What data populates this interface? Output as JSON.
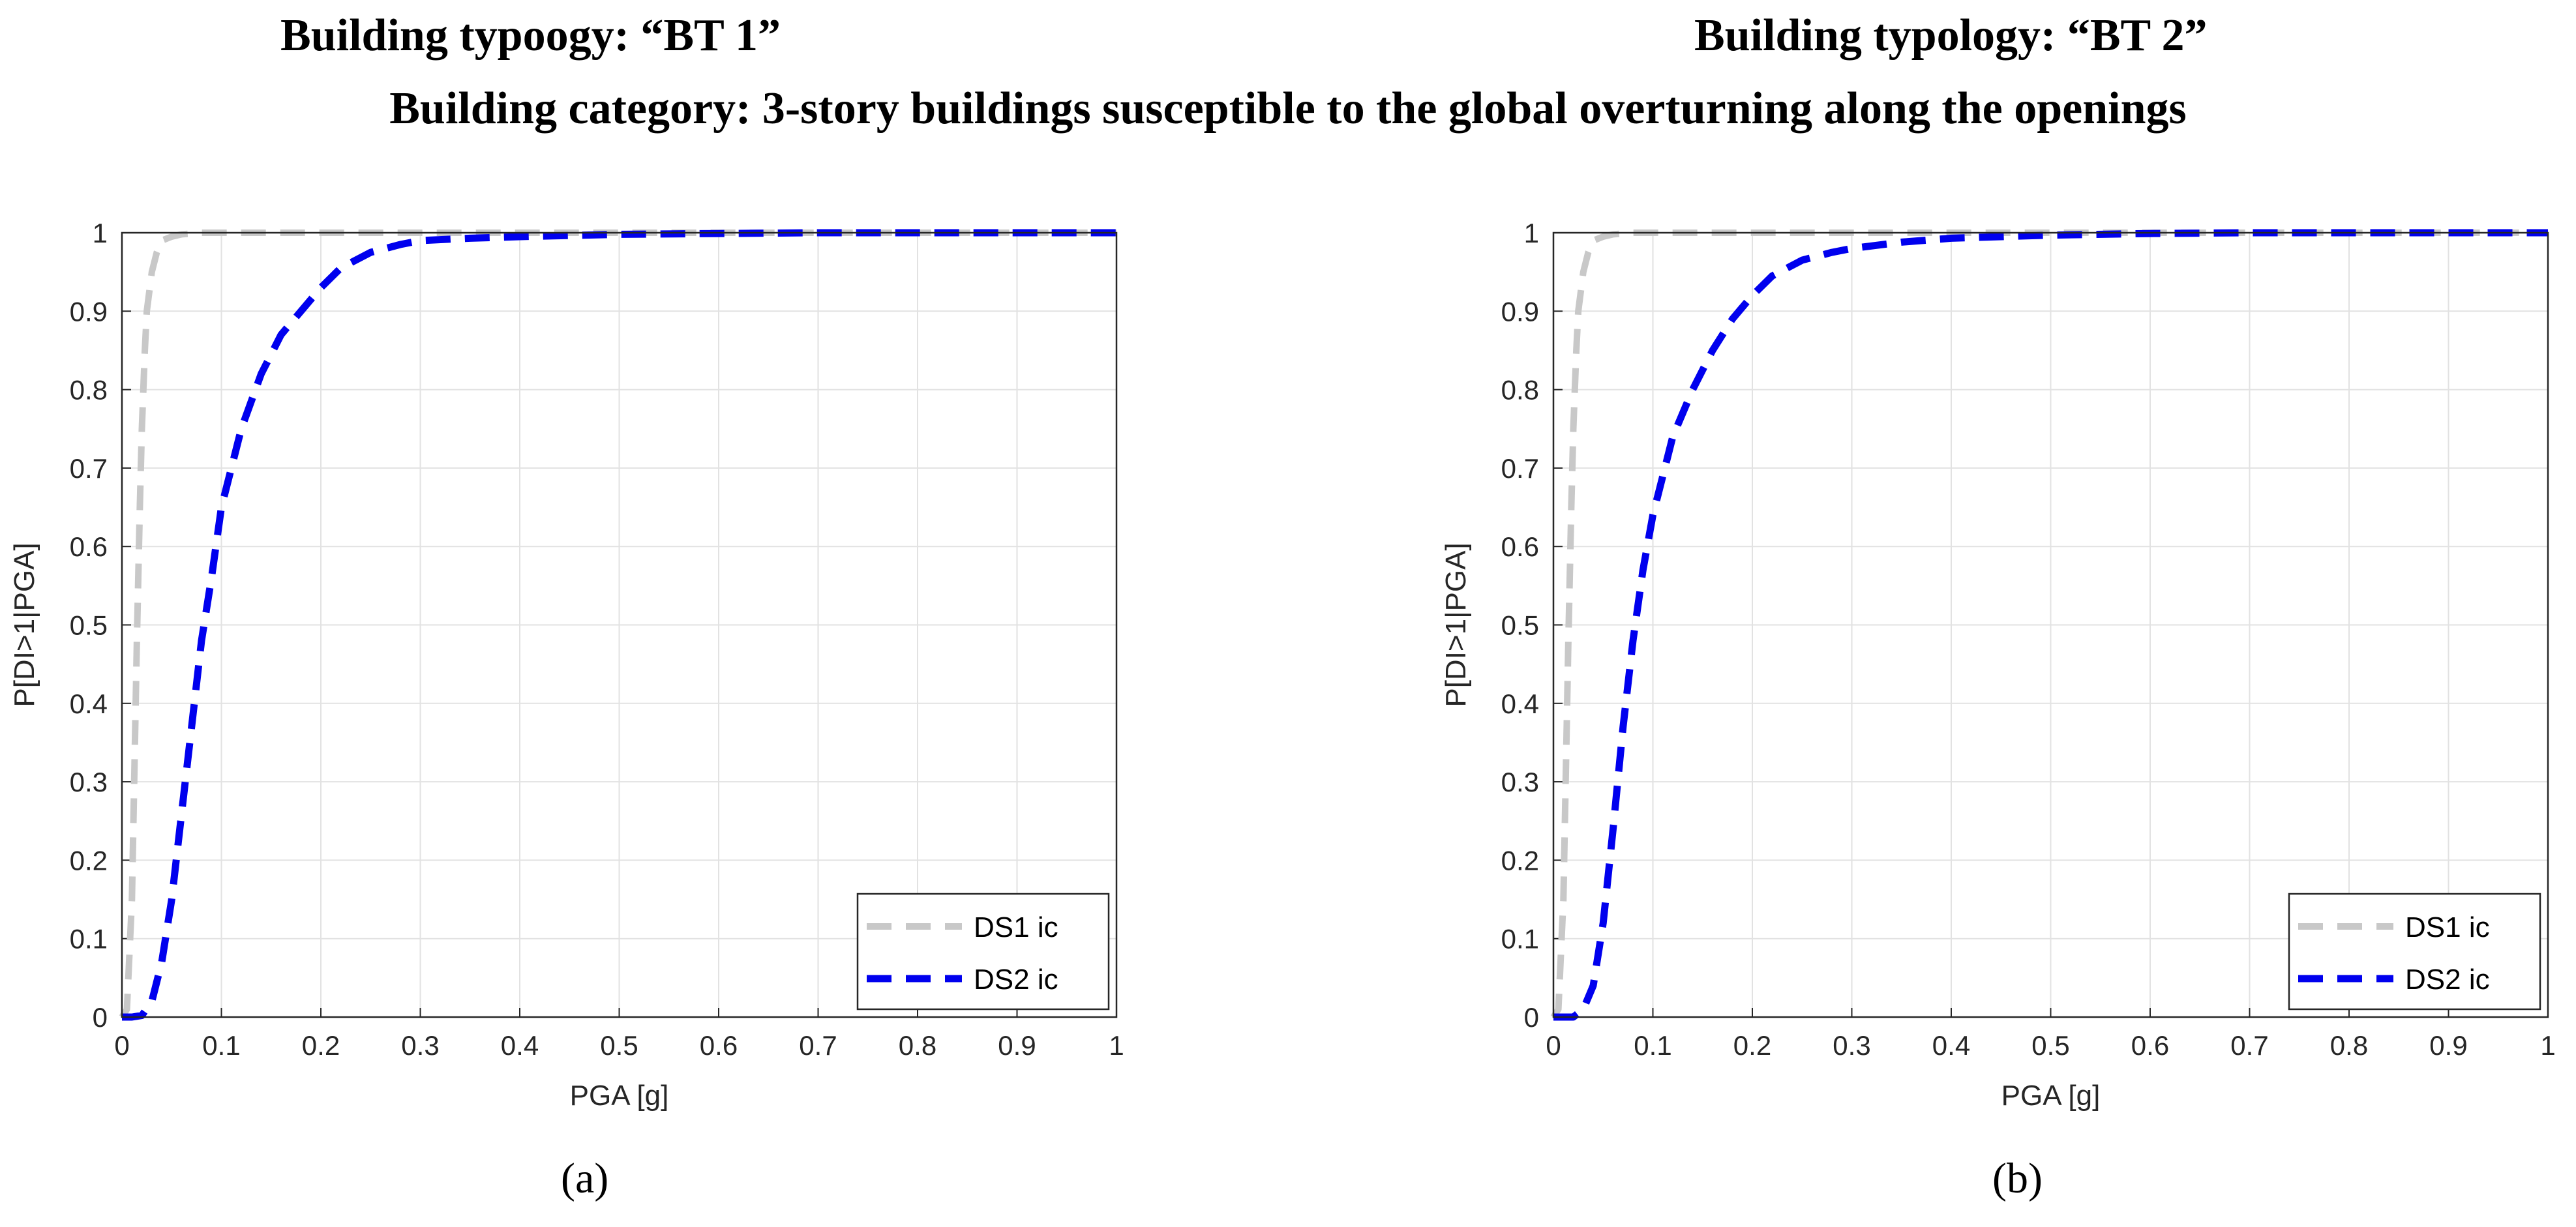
{
  "headings": {
    "left": "Building typoogy: “BT 1”",
    "right": "Building typology: “BT 2”",
    "category": "Building category: 3-story buildings susceptible to the global overturning along the openings"
  },
  "colors": {
    "ds1": "#c8c8c8",
    "ds2": "#0000ee",
    "grid": "#e2e2e2",
    "axis": "#262626"
  },
  "chart_data": [
    {
      "type": "line",
      "panel_label": "(a)",
      "xlabel": "PGA [g]",
      "ylabel": "P[DI>1|PGA]",
      "xlim": [
        0,
        1
      ],
      "ylim": [
        0,
        1
      ],
      "xticks": [
        "0",
        "0.1",
        "0.2",
        "0.3",
        "0.4",
        "0.5",
        "0.6",
        "0.7",
        "0.8",
        "0.9",
        "1"
      ],
      "yticks": [
        "0",
        "0.1",
        "0.2",
        "0.3",
        "0.4",
        "0.5",
        "0.6",
        "0.7",
        "0.8",
        "0.9",
        "1"
      ],
      "grid": true,
      "legend_position": "bottom-right",
      "series": [
        {
          "name": "DS1 ic",
          "style": "dashed",
          "color": "#c8c8c8",
          "x": [
            0,
            0.005,
            0.01,
            0.012,
            0.015,
            0.018,
            0.02,
            0.023,
            0.025,
            0.03,
            0.035,
            0.04,
            0.05,
            0.06,
            0.08,
            1.0
          ],
          "y": [
            0,
            0.01,
            0.15,
            0.28,
            0.48,
            0.65,
            0.75,
            0.85,
            0.9,
            0.95,
            0.975,
            0.99,
            0.995,
            0.998,
            1.0,
            1.0
          ]
        },
        {
          "name": "DS2 ic",
          "style": "dashed",
          "color": "#0000ee",
          "x": [
            0,
            0.01,
            0.02,
            0.03,
            0.04,
            0.05,
            0.06,
            0.07,
            0.08,
            0.09,
            0.1,
            0.11,
            0.12,
            0.14,
            0.16,
            0.18,
            0.2,
            0.22,
            0.25,
            0.28,
            0.3,
            0.35,
            0.4,
            0.5,
            0.6,
            0.7,
            0.8,
            0.9,
            1.0
          ],
          "y": [
            0,
            0.0,
            0.002,
            0.02,
            0.07,
            0.15,
            0.26,
            0.37,
            0.48,
            0.56,
            0.65,
            0.7,
            0.75,
            0.82,
            0.87,
            0.9,
            0.93,
            0.955,
            0.975,
            0.985,
            0.99,
            0.993,
            0.995,
            0.998,
            0.999,
            1.0,
            1.0,
            1.0,
            1.0
          ]
        }
      ]
    },
    {
      "type": "line",
      "panel_label": "(b)",
      "xlabel": "PGA [g]",
      "ylabel": "P[DI>1|PGA]",
      "xlim": [
        0,
        1
      ],
      "ylim": [
        0,
        1
      ],
      "xticks": [
        "0",
        "0.1",
        "0.2",
        "0.3",
        "0.4",
        "0.5",
        "0.6",
        "0.7",
        "0.8",
        "0.9",
        "1"
      ],
      "yticks": [
        "0",
        "0.1",
        "0.2",
        "0.3",
        "0.4",
        "0.5",
        "0.6",
        "0.7",
        "0.8",
        "0.9",
        "1"
      ],
      "grid": true,
      "legend_position": "bottom-right",
      "series": [
        {
          "name": "DS1 ic",
          "style": "dashed",
          "color": "#c8c8c8",
          "x": [
            0,
            0.005,
            0.01,
            0.012,
            0.015,
            0.018,
            0.02,
            0.023,
            0.025,
            0.03,
            0.035,
            0.04,
            0.05,
            0.06,
            0.08,
            1.0
          ],
          "y": [
            0,
            0.01,
            0.15,
            0.28,
            0.48,
            0.65,
            0.75,
            0.85,
            0.9,
            0.95,
            0.975,
            0.99,
            0.995,
            0.998,
            1.0,
            1.0
          ]
        },
        {
          "name": "DS2 ic",
          "style": "dashed",
          "color": "#0000ee",
          "x": [
            0,
            0.01,
            0.02,
            0.03,
            0.04,
            0.05,
            0.06,
            0.07,
            0.08,
            0.09,
            0.1,
            0.11,
            0.12,
            0.14,
            0.16,
            0.18,
            0.2,
            0.22,
            0.25,
            0.28,
            0.3,
            0.35,
            0.4,
            0.5,
            0.6,
            0.7,
            0.8,
            0.9,
            1.0
          ],
          "y": [
            0,
            0.0,
            0.0,
            0.01,
            0.04,
            0.12,
            0.24,
            0.37,
            0.48,
            0.57,
            0.64,
            0.69,
            0.74,
            0.8,
            0.85,
            0.89,
            0.92,
            0.945,
            0.965,
            0.975,
            0.98,
            0.988,
            0.993,
            0.997,
            0.999,
            1.0,
            1.0,
            1.0,
            1.0
          ]
        }
      ]
    }
  ]
}
